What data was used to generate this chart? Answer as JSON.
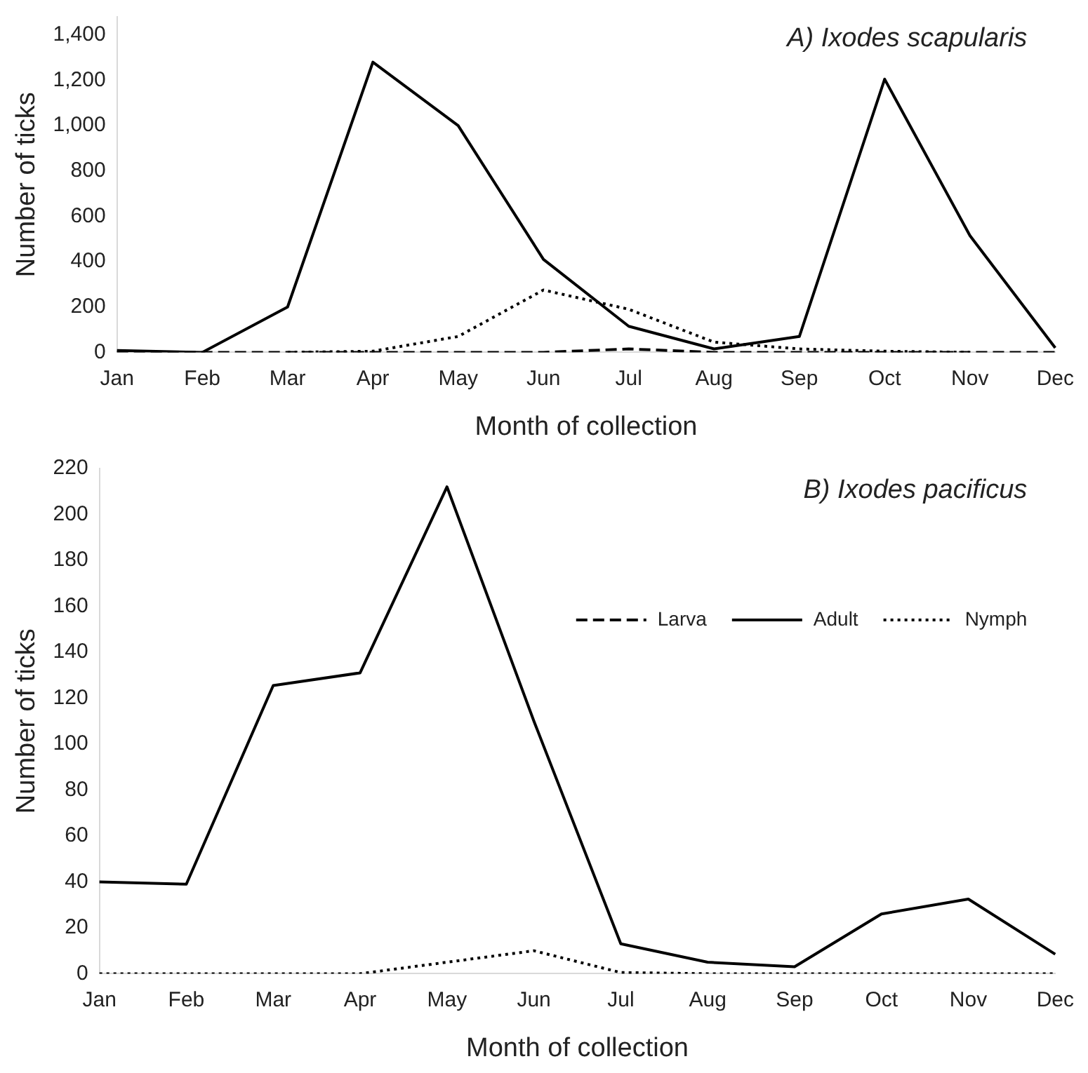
{
  "chart_data": [
    {
      "type": "line",
      "title": "A) Ixodes scapularis",
      "xlabel": "Month of collection",
      "ylabel": "Number of ticks",
      "categories": [
        "Jan",
        "Feb",
        "Mar",
        "Apr",
        "May",
        "Jun",
        "Jul",
        "Aug",
        "Sep",
        "Oct",
        "Nov",
        "Dec"
      ],
      "series": [
        {
          "color": "#000000",
          "line_style": "dashed",
          "values": [
            0,
            0,
            0,
            0,
            0,
            0,
            15,
            0,
            0,
            0,
            0,
            0
          ]
        },
        {
          "color": "#000000",
          "line_style": "solid",
          "values": [
            8,
            0,
            200,
            1280,
            1000,
            410,
            115,
            15,
            70,
            1205,
            515,
            20
          ]
        },
        {
          "color": "#000000",
          "line_style": "dotted",
          "values": [
            null,
            null,
            0,
            5,
            70,
            275,
            190,
            45,
            15,
            5,
            0,
            null
          ]
        }
      ],
      "ylim": [
        0,
        1480
      ],
      "yticks": [
        {
          "value": 0,
          "label": "0"
        },
        {
          "value": 200,
          "label": "200"
        },
        {
          "value": 400,
          "label": "400"
        },
        {
          "value": 600,
          "label": "600"
        },
        {
          "value": 800,
          "label": "800"
        },
        {
          "value": 1000,
          "label": "1,000"
        },
        {
          "value": 1200,
          "label": "1,200"
        },
        {
          "value": 1400,
          "label": "1,400"
        }
      ],
      "grid": false,
      "legend": false,
      "marker": "none"
    },
    {
      "type": "line",
      "title": "B) Ixodes pacificus",
      "xlabel": "Month of collection",
      "ylabel": "Number of ticks",
      "categories": [
        "Jan",
        "Feb",
        "Mar",
        "Apr",
        "May",
        "Jun",
        "Jul",
        "Aug",
        "Sep",
        "Oct",
        "Nov",
        "Dec"
      ],
      "series": [
        {
          "name": "Larva",
          "color": "#000000",
          "line_style": "dashed",
          "values": [
            null,
            null,
            null,
            null,
            null,
            null,
            null,
            null,
            null,
            null,
            null,
            null
          ]
        },
        {
          "name": "Adult",
          "color": "#000000",
          "line_style": "solid",
          "values": [
            40,
            39,
            125.5,
            131,
            212,
            110,
            13,
            5,
            3,
            26,
            32.5,
            8.5
          ]
        },
        {
          "name": "Nymph",
          "color": "#000000",
          "line_style": "dotted",
          "values": [
            0,
            0,
            0,
            0,
            5,
            10,
            0.5,
            0,
            0,
            0,
            0,
            0
          ]
        }
      ],
      "ylim": [
        0,
        220
      ],
      "yticks": [
        0,
        20,
        40,
        60,
        80,
        100,
        120,
        140,
        160,
        180,
        200,
        220
      ],
      "grid": false,
      "legend": "top right",
      "marker": "none"
    }
  ]
}
